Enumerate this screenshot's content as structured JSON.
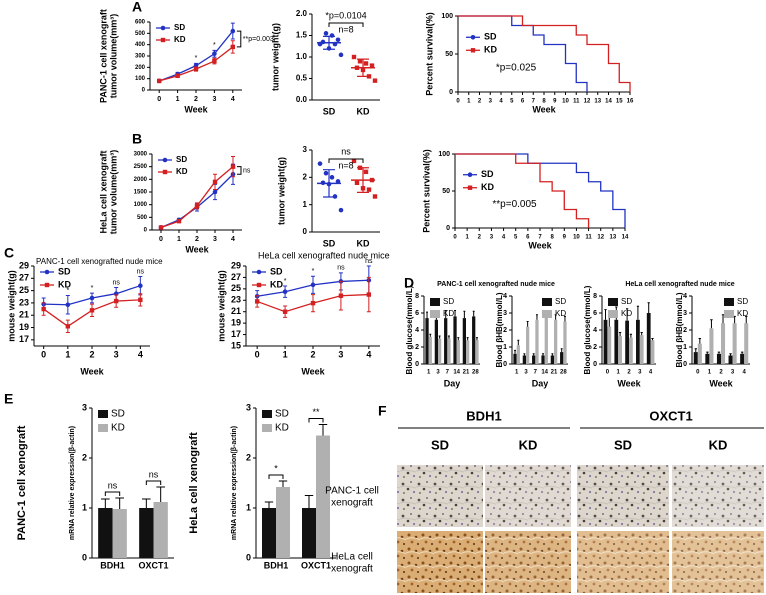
{
  "panel_labels": [
    "A",
    "B",
    "C",
    "D",
    "E",
    "F"
  ],
  "chart_data": [
    {
      "type": "line",
      "ylabel": [
        "PANC-1 cell xenograft",
        "tumor volume(mm³)"
      ],
      "xlabel": "Week",
      "x": [
        0,
        1,
        2,
        3,
        4
      ],
      "xlim": [
        -0.5,
        4.5
      ],
      "xticks": [
        0,
        1,
        2,
        3,
        4
      ],
      "ylim": [
        0,
        600
      ],
      "yticks": [
        0,
        100,
        200,
        300,
        400,
        500,
        600
      ],
      "legend": "upper left",
      "series": [
        {
          "name": "SD",
          "color": "#2233c4",
          "values": [
            80,
            140,
            215,
            320,
            520
          ],
          "errors": [
            8,
            15,
            20,
            30,
            70
          ]
        },
        {
          "name": "KD",
          "color": "#d42020",
          "values": [
            80,
            125,
            185,
            255,
            380
          ],
          "errors": [
            8,
            15,
            18,
            25,
            55
          ]
        }
      ],
      "annotations": [
        {
          "text": "*",
          "x": 2
        },
        {
          "text": "*",
          "x": 3
        },
        {
          "text": "**p=0.003",
          "x": 4,
          "position": "right"
        }
      ]
    },
    {
      "type": "dot",
      "ylabel": "tumor weight(g)",
      "ylim": [
        0,
        2
      ],
      "yticks": [
        {
          "value": 0,
          "label": "0.0"
        },
        {
          "value": 0.5,
          "label": "0.5"
        },
        {
          "value": 1,
          "label": "1.0"
        },
        {
          "value": 1.5,
          "label": "1.5"
        },
        {
          "value": 2,
          "label": "2.0"
        }
      ],
      "series": [
        {
          "name": "SD",
          "color": "#2233c4",
          "values": [
            1.3,
            1.55,
            1.5,
            1.4,
            1.35,
            1.2,
            1.3,
            1.05
          ],
          "mean": 1.33,
          "sd": 0.15
        },
        {
          "name": "KD",
          "color": "#d42020",
          "values": [
            1.0,
            0.9,
            0.85,
            0.8,
            0.75,
            0.7,
            0.55,
            0.45
          ],
          "mean": 0.75,
          "sd": 0.2
        }
      ],
      "annotations": [
        {
          "text": "*p=0.0104"
        },
        {
          "text": "n=8"
        }
      ]
    },
    {
      "type": "survival",
      "ylabel": "Percent survival(%)",
      "xlabel": "Week",
      "xlim": [
        0,
        16
      ],
      "xticks": [
        0,
        1,
        2,
        3,
        4,
        5,
        6,
        7,
        8,
        9,
        10,
        11,
        12,
        13,
        14,
        15,
        16
      ],
      "ylim": [
        0,
        100
      ],
      "yticks": [
        0,
        50,
        100
      ],
      "legend": "center left",
      "series": [
        {
          "name": "SD",
          "color": "#2233c4",
          "x": [
            0,
            5,
            7,
            8,
            10,
            11,
            12
          ],
          "values": [
            100,
            87.5,
            75,
            62.5,
            37.5,
            12.5,
            0
          ]
        },
        {
          "name": "KD",
          "color": "#d42020",
          "x": [
            0,
            6,
            11,
            12,
            14,
            15,
            16
          ],
          "values": [
            100,
            87.5,
            75,
            62.5,
            37.5,
            12.5,
            0
          ]
        }
      ],
      "annotations": [
        {
          "text": "*p=0.025"
        }
      ]
    },
    {
      "type": "line",
      "ylabel": [
        "HeLa cell xenograft",
        "tumor volume(mm³)"
      ],
      "xlabel": "Week",
      "x": [
        0,
        1,
        2,
        3,
        4
      ],
      "xlim": [
        -0.5,
        4.5
      ],
      "xticks": [
        0,
        1,
        2,
        3,
        4
      ],
      "ylim": [
        0,
        3000
      ],
      "yticks": [
        0,
        500,
        1000,
        1500,
        2000,
        2500,
        3000
      ],
      "legend": "upper left",
      "series": [
        {
          "name": "SD",
          "color": "#2233c4",
          "values": [
            100,
            400,
            900,
            1500,
            2200
          ],
          "errors": [
            20,
            60,
            150,
            300,
            400
          ]
        },
        {
          "name": "KD",
          "color": "#d42020",
          "values": [
            100,
            350,
            950,
            1900,
            2500
          ],
          "errors": [
            20,
            60,
            120,
            300,
            400
          ]
        }
      ],
      "annotations": [
        {
          "text": "ns",
          "x": 4,
          "position": "right"
        }
      ]
    },
    {
      "type": "dot",
      "ylabel": "tumor weight(g)",
      "ylim": [
        0,
        3
      ],
      "yticks": [
        0,
        1,
        2,
        3
      ],
      "series": [
        {
          "name": "SD",
          "color": "#2233c4",
          "values": [
            2.5,
            2.15,
            2.0,
            1.85,
            1.8,
            1.75,
            1.3,
            0.8
          ],
          "mean": 1.78,
          "sd": 0.5
        },
        {
          "name": "KD",
          "color": "#d42020",
          "values": [
            2.6,
            2.35,
            2.2,
            1.9,
            1.8,
            1.6,
            1.55,
            1.3
          ],
          "mean": 1.9,
          "sd": 0.45
        }
      ],
      "annotations": [
        {
          "text": "ns"
        },
        {
          "text": "n=8"
        }
      ]
    },
    {
      "type": "survival",
      "ylabel": "Percent survival(%)",
      "xlabel": "Week",
      "xlim": [
        0,
        14
      ],
      "xticks": [
        0,
        1,
        2,
        3,
        4,
        5,
        6,
        7,
        8,
        9,
        10,
        11,
        12,
        13,
        14
      ],
      "ylim": [
        0,
        100
      ],
      "yticks": [
        0,
        50,
        100
      ],
      "legend": "center left",
      "series": [
        {
          "name": "SD",
          "color": "#2233c4",
          "x": [
            0,
            6,
            10,
            11,
            12,
            13,
            14
          ],
          "values": [
            100,
            87.5,
            75,
            62.5,
            50,
            25,
            0
          ]
        },
        {
          "name": "KD",
          "color": "#d42020",
          "x": [
            0,
            5,
            7,
            8,
            9,
            10,
            11
          ],
          "values": [
            100,
            87.5,
            62.5,
            50,
            25,
            12.5,
            0
          ]
        }
      ],
      "annotations": [
        {
          "text": "**p=0.005"
        }
      ]
    },
    {
      "type": "line",
      "title": "PANC-1 cell xenografted nude mice",
      "ylabel": "mouse weight(g)",
      "xlabel": "Week",
      "x": [
        0,
        1,
        2,
        3,
        4
      ],
      "xlim": [
        -0.4,
        4.4
      ],
      "xticks": [
        0,
        1,
        2,
        3,
        4
      ],
      "ylim": [
        16,
        29
      ],
      "yticks": [
        17,
        19,
        21,
        23,
        25,
        27,
        29
      ],
      "legend": "upper left",
      "series": [
        {
          "name": "SD",
          "color": "#2233c4",
          "values": [
            22.8,
            22.7,
            23.8,
            24.5,
            25.8
          ],
          "errors": [
            1,
            1.5,
            0.8,
            1,
            1.5
          ]
        },
        {
          "name": "KD",
          "color": "#d42020",
          "values": [
            22,
            19.2,
            21.8,
            23.3,
            23.5
          ],
          "errors": [
            1,
            1,
            1,
            1,
            1
          ]
        }
      ],
      "annotations": [
        {
          "text": "*",
          "x": 1
        },
        {
          "text": "*",
          "x": 2
        },
        {
          "text": "ns",
          "x": 3
        },
        {
          "text": "ns",
          "x": 4
        }
      ]
    },
    {
      "type": "line",
      "title": "HeLa cell xenografted nude mice",
      "ylabel": "mouse weight(g)",
      "xlabel": "Week",
      "x": [
        0,
        1,
        2,
        3,
        4
      ],
      "xlim": [
        -0.4,
        4.4
      ],
      "xticks": [
        0,
        1,
        2,
        3,
        4
      ],
      "ylim": [
        15,
        29
      ],
      "yticks": [
        15,
        17,
        19,
        21,
        23,
        25,
        27,
        29
      ],
      "legend": "upper left",
      "series": [
        {
          "name": "SD",
          "color": "#2233c4",
          "values": [
            23.7,
            24.5,
            25.7,
            26.3,
            26.5
          ],
          "errors": [
            1,
            1,
            1.5,
            1.5,
            2.5
          ]
        },
        {
          "name": "KD",
          "color": "#d42020",
          "values": [
            22.8,
            21,
            22.5,
            23.8,
            24
          ],
          "errors": [
            1,
            1,
            1.5,
            2.5,
            3
          ]
        }
      ],
      "annotations": [
        {
          "text": "*",
          "x": 1
        },
        {
          "text": "*",
          "x": 2
        },
        {
          "text": "ns",
          "x": 3
        },
        {
          "text": "ns",
          "x": 4
        }
      ]
    },
    {
      "type": "bar",
      "title": "PANC-1 cell xenografted nude mice",
      "ylabel": "Blood glucose(mmol/L)",
      "xlabel": "Day",
      "categories": [
        "1",
        "3",
        "7",
        "14",
        "21",
        "28"
      ],
      "ylim": [
        0,
        8
      ],
      "yticks": [
        0,
        2,
        4,
        6,
        8
      ],
      "legend": "upper left",
      "series": [
        {
          "name": "SD",
          "color": "#111111",
          "values": [
            5.4,
            5.2,
            5.4,
            5.6,
            5.4,
            5.6
          ],
          "errors": [
            0.7,
            0.8,
            0.9,
            0.7,
            0.8,
            0.6
          ]
        },
        {
          "name": "KD",
          "color": "#b0b0b0",
          "values": [
            3.2,
            3.0,
            3.0,
            2.8,
            2.8,
            2.8
          ],
          "errors": [
            0.3,
            0.3,
            0.3,
            0.3,
            0.3,
            0.3
          ]
        }
      ]
    },
    {
      "type": "bar",
      "ylabel": "Blood βHB(mmol/L)",
      "xlabel": "Day",
      "categories": [
        "1",
        "3",
        "7",
        "14",
        "21",
        "28"
      ],
      "ylim": [
        0,
        4
      ],
      "yticks": [
        0,
        1,
        2,
        3,
        4
      ],
      "legend": "upper right",
      "series": [
        {
          "name": "SD",
          "color": "#111111",
          "values": [
            0.6,
            0.5,
            0.5,
            0.5,
            0.5,
            0.7
          ],
          "errors": [
            0.2,
            0.1,
            0.1,
            0.1,
            0.1,
            0.2
          ]
        },
        {
          "name": "KD",
          "color": "#b0b0b0",
          "values": [
            1.1,
            2.2,
            2.6,
            2.7,
            2.6,
            2.5
          ],
          "errors": [
            0.3,
            0.3,
            0.3,
            0.2,
            0.3,
            0.3
          ]
        }
      ]
    },
    {
      "type": "bar",
      "title": "HeLa cell xenografted nude mice",
      "ylabel": "Blood glucose(mmol/L)",
      "xlabel": "Week",
      "categories": [
        "0",
        "1",
        "2",
        "3",
        "4"
      ],
      "ylim": [
        0,
        8
      ],
      "yticks": [
        0,
        2,
        4,
        6,
        8
      ],
      "legend": "upper left",
      "series": [
        {
          "name": "SD",
          "color": "#111111",
          "values": [
            5.2,
            5.2,
            5.1,
            5.2,
            6.0
          ],
          "errors": [
            1.2,
            1.5,
            1.4,
            1.6,
            1.2
          ]
        },
        {
          "name": "KD",
          "color": "#b0b0b0",
          "values": [
            4.4,
            3.3,
            3.1,
            3.4,
            2.8
          ],
          "errors": [
            1.3,
            0.4,
            0.4,
            0.3,
            0.2
          ]
        }
      ]
    },
    {
      "type": "bar",
      "ylabel": "Blood βHB(mmol/L)",
      "xlabel": "Week",
      "categories": [
        "0",
        "1",
        "2",
        "3",
        "4"
      ],
      "ylim": [
        0,
        4
      ],
      "yticks": [
        0,
        1,
        2,
        3,
        4
      ],
      "legend": "upper right",
      "series": [
        {
          "name": "SD",
          "color": "#111111",
          "values": [
            0.7,
            0.6,
            0.6,
            0.5,
            0.6
          ],
          "errors": [
            0.2,
            0.1,
            0.1,
            0.1,
            0.1
          ]
        },
        {
          "name": "KD",
          "color": "#b0b0b0",
          "values": [
            1.2,
            2.1,
            2.4,
            2.4,
            2.4
          ],
          "errors": [
            0.3,
            0.5,
            0.5,
            0.4,
            0.4
          ]
        }
      ]
    },
    {
      "type": "bar",
      "side_label": "PANC-1 cell xenograft",
      "ylabel": "mRNA relative expression(β-actin)",
      "categories": [
        "BDH1",
        "OXCT1"
      ],
      "ylim": [
        0,
        3
      ],
      "yticks": [
        0,
        1,
        2,
        3
      ],
      "legend": "upper left",
      "series": [
        {
          "name": "SD",
          "color": "#111111",
          "values": [
            1.0,
            1.0
          ],
          "errors": [
            0.18,
            0.18
          ]
        },
        {
          "name": "KD",
          "color": "#b0b0b0",
          "values": [
            0.98,
            1.12
          ],
          "errors": [
            0.22,
            0.3
          ]
        }
      ],
      "annotations": [
        {
          "text": "ns",
          "x": 0
        },
        {
          "text": "ns",
          "x": 1
        }
      ]
    },
    {
      "type": "bar",
      "side_label": "HeLa cell xenograft",
      "ylabel": "mRNA relative expression(β-actin)",
      "categories": [
        "BDH1",
        "OXCT1"
      ],
      "ylim": [
        0,
        3
      ],
      "yticks": [
        0,
        1,
        2,
        3
      ],
      "legend": "upper left",
      "series": [
        {
          "name": "SD",
          "color": "#111111",
          "values": [
            1.0,
            1.0
          ],
          "errors": [
            0.12,
            0.25
          ]
        },
        {
          "name": "KD",
          "color": "#b0b0b0",
          "values": [
            1.42,
            2.45
          ],
          "errors": [
            0.12,
            0.22
          ]
        }
      ],
      "annotations": [
        {
          "text": "*",
          "x": 0
        },
        {
          "text": "**",
          "x": 1
        }
      ]
    }
  ],
  "figure_f": {
    "genes": [
      "BDH1",
      "OXCT1"
    ],
    "groups": [
      "SD",
      "KD",
      "SD",
      "KD"
    ],
    "rows": [
      [
        "PANC-1 cell",
        "xenograft"
      ],
      [
        "HeLa cell",
        "xenograft"
      ]
    ]
  }
}
